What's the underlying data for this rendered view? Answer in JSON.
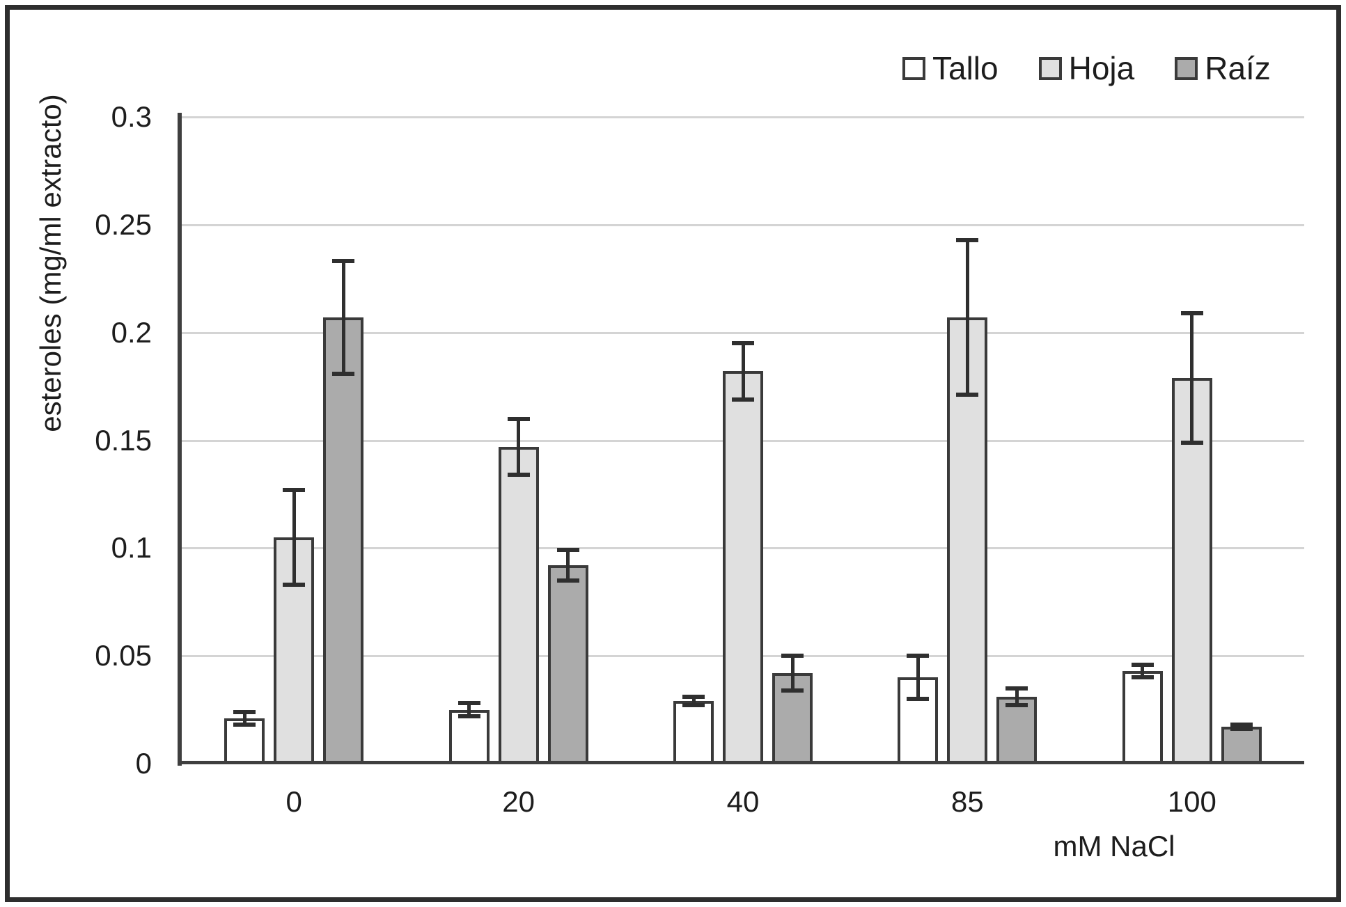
{
  "chart_data": {
    "type": "bar",
    "title": "",
    "xlabel": "mM NaCl",
    "ylabel": "esteroles (mg/ml extracto)",
    "categories": [
      "0",
      "20",
      "40",
      "85",
      "100"
    ],
    "series": [
      {
        "name": "Tallo",
        "fill": "#ffffff",
        "values": [
          0.021,
          0.025,
          0.029,
          0.04,
          0.043
        ],
        "errors": [
          0.003,
          0.003,
          0.002,
          0.01,
          0.003
        ]
      },
      {
        "name": "Hoja",
        "fill": "#e0e0e0",
        "values": [
          0.105,
          0.147,
          0.182,
          0.207,
          0.179
        ],
        "errors": [
          0.022,
          0.013,
          0.013,
          0.036,
          0.03
        ]
      },
      {
        "name": "Raíz",
        "fill": "#ababab",
        "values": [
          0.207,
          0.092,
          0.042,
          0.031,
          0.017
        ],
        "errors": [
          0.026,
          0.007,
          0.008,
          0.004,
          0.001
        ]
      }
    ],
    "ylim": [
      0,
      0.3
    ],
    "yticks": [
      {
        "v": 0,
        "label": "0"
      },
      {
        "v": 0.05,
        "label": "0.05"
      },
      {
        "v": 0.1,
        "label": "0.1"
      },
      {
        "v": 0.15,
        "label": "0.15"
      },
      {
        "v": 0.2,
        "label": "0.2"
      },
      {
        "v": 0.25,
        "label": "0.25"
      },
      {
        "v": 0.3,
        "label": "0.3"
      }
    ],
    "grid": true,
    "legend_position": "top-right",
    "colors": {
      "bar_border": "#3a3a3a",
      "axis": "#3f3f3f",
      "gridline": "#d4d4d4",
      "text": "#1d1d1d",
      "error_bar": "#2f2f2f",
      "figure_border": "#2e2e2e",
      "background": "#ffffff"
    }
  }
}
